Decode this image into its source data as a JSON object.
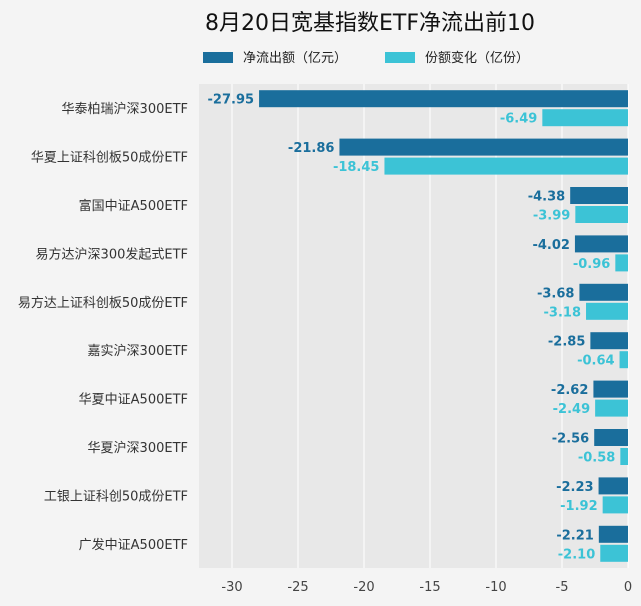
{
  "chart_data": {
    "type": "bar",
    "orientation": "horizontal",
    "title": "8月20日宽基指数ETF净流出前10",
    "categories": [
      "华泰柏瑞沪深300ETF",
      "华夏上证科创板50成份ETF",
      "富国中证A500ETF",
      "易方达沪深300发起式ETF",
      "易方达上证科创板50成份ETF",
      "嘉实沪深300ETF",
      "华夏中证A500ETF",
      "华夏沪深300ETF",
      "工银上证科创50成份ETF",
      "广发中证A500ETF"
    ],
    "series": [
      {
        "name": "净流出额（亿元）",
        "color": "#1a6e9c",
        "values": [
          -27.95,
          -21.86,
          -4.38,
          -4.02,
          -3.68,
          -2.85,
          -2.62,
          -2.56,
          -2.23,
          -2.21
        ],
        "labels": [
          "-27.95",
          "-21.86",
          "-4.38",
          "-4.02",
          "-3.68",
          "-2.85",
          "-2.62",
          "-2.56",
          "-2.23",
          "-2.21"
        ]
      },
      {
        "name": "份额变化（亿份）",
        "color": "#3cc3d6",
        "values": [
          -6.49,
          -18.45,
          -3.99,
          -0.96,
          -3.18,
          -0.64,
          -2.49,
          -0.58,
          -1.92,
          -2.1
        ],
        "labels": [
          "-6.49",
          "-18.45",
          "-3.99",
          "-0.96",
          "-3.18",
          "-0.64",
          "-2.49",
          "-0.58",
          "-1.92",
          "-2.10"
        ]
      }
    ],
    "xlim": [
      -32.5,
      0
    ],
    "xticks": [
      -30,
      -25,
      -20,
      -15,
      -10,
      -5,
      0
    ],
    "xtick_labels": [
      "-30",
      "-25",
      "-20",
      "-15",
      "-10",
      "-5",
      "0"
    ],
    "grid": "vertical",
    "legend": "top-center",
    "plot_background": "#e8e8e8"
  }
}
